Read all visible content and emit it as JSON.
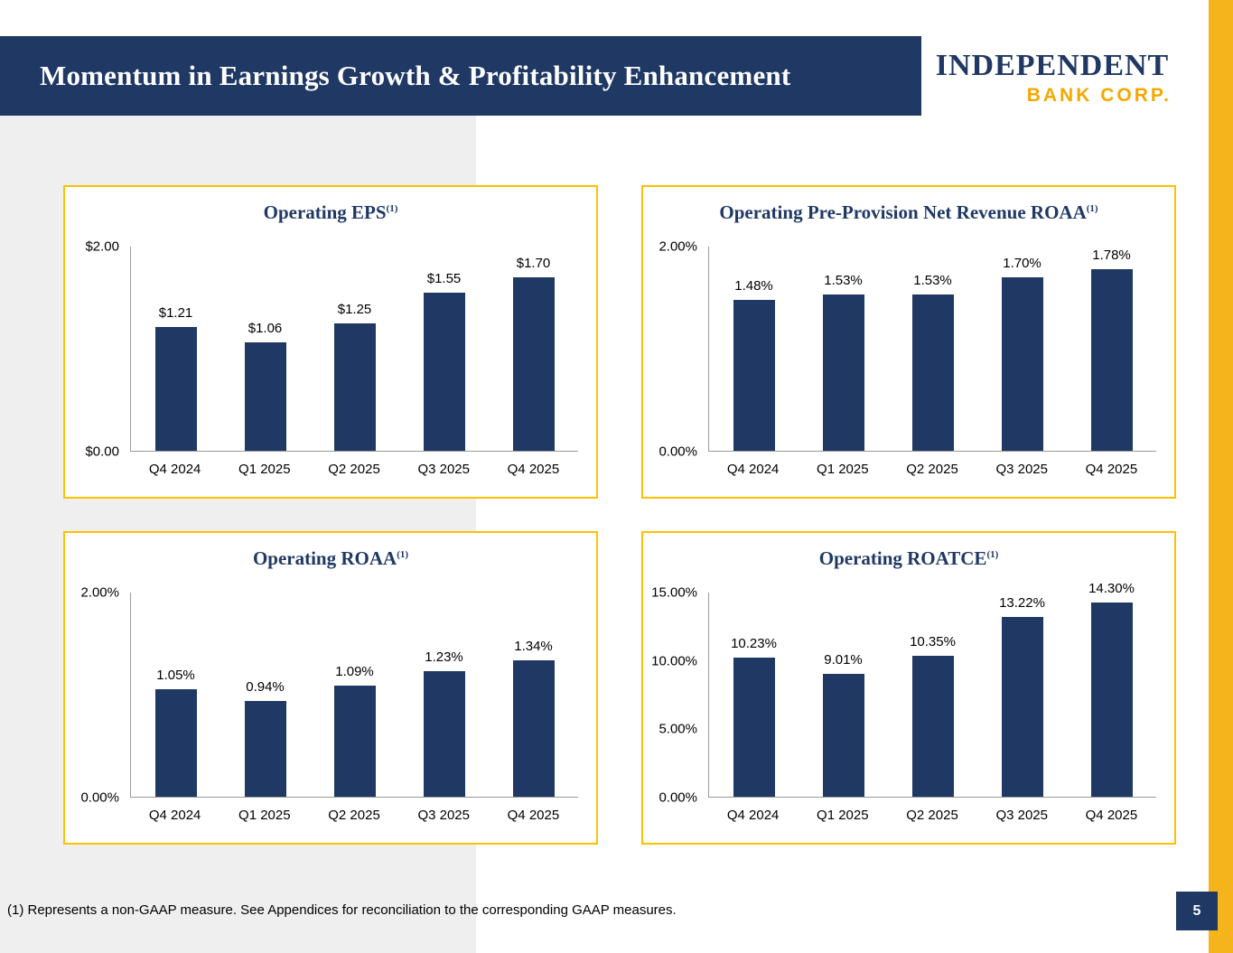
{
  "slide": {
    "title": "Momentum in Earnings Growth & Profitability Enhancement",
    "logo": {
      "line1": "INDEPENDENT",
      "line2": "BANK CORP."
    },
    "footnote": "(1) Represents a non-GAAP measure. See Appendices for reconciliation to the corresponding GAAP measures.",
    "page_number": "5"
  },
  "colors": {
    "navy": "#1f3864",
    "accent_gold": "#f5b31c",
    "chart_border_gold": "#ffc000",
    "logo_gold": "#f5a800",
    "gray_background": "#efefef"
  },
  "chart_data": [
    {
      "type": "bar",
      "title": "Operating EPS",
      "title_superscript": "(1)",
      "categories": [
        "Q4 2024",
        "Q1 2025",
        "Q2 2025",
        "Q3 2025",
        "Q4 2025"
      ],
      "values": [
        1.21,
        1.06,
        1.25,
        1.55,
        1.7
      ],
      "labels": [
        "$1.21",
        "$1.06",
        "$1.25",
        "$1.55",
        "$1.70"
      ],
      "ylim": [
        0,
        2.0
      ],
      "yticks": [
        {
          "value": 2.0,
          "label": "$2.00"
        },
        {
          "value": 0.0,
          "label": "$0.00"
        }
      ],
      "grid": false,
      "legend": "none",
      "bar_color": "#1f3864"
    },
    {
      "type": "bar",
      "title": "Operating Pre-Provision Net Revenue ROAA",
      "title_superscript": "(1)",
      "categories": [
        "Q4 2024",
        "Q1 2025",
        "Q2 2025",
        "Q3 2025",
        "Q4 2025"
      ],
      "values": [
        1.48,
        1.53,
        1.53,
        1.7,
        1.78
      ],
      "labels": [
        "1.48%",
        "1.53%",
        "1.53%",
        "1.70%",
        "1.78%"
      ],
      "ylim": [
        0,
        2.0
      ],
      "yticks": [
        {
          "value": 2.0,
          "label": "2.00%"
        },
        {
          "value": 0.0,
          "label": "0.00%"
        }
      ],
      "grid": false,
      "legend": "none",
      "bar_color": "#1f3864"
    },
    {
      "type": "bar",
      "title": "Operating ROAA",
      "title_superscript": "(1)",
      "categories": [
        "Q4 2024",
        "Q1 2025",
        "Q2 2025",
        "Q3 2025",
        "Q4 2025"
      ],
      "values": [
        1.05,
        0.94,
        1.09,
        1.23,
        1.34
      ],
      "labels": [
        "1.05%",
        "0.94%",
        "1.09%",
        "1.23%",
        "1.34%"
      ],
      "ylim": [
        0,
        2.0
      ],
      "yticks": [
        {
          "value": 2.0,
          "label": "2.00%"
        },
        {
          "value": 0.0,
          "label": "0.00%"
        }
      ],
      "grid": false,
      "legend": "none",
      "bar_color": "#1f3864"
    },
    {
      "type": "bar",
      "title": "Operating ROATCE",
      "title_superscript": "(1)",
      "categories": [
        "Q4 2024",
        "Q1 2025",
        "Q2 2025",
        "Q3 2025",
        "Q4 2025"
      ],
      "values": [
        10.23,
        9.01,
        10.35,
        13.22,
        14.3
      ],
      "labels": [
        "10.23%",
        "9.01%",
        "10.35%",
        "13.22%",
        "14.30%"
      ],
      "ylim": [
        0,
        15.0
      ],
      "yticks": [
        {
          "value": 15.0,
          "label": "15.00%"
        },
        {
          "value": 10.0,
          "label": "10.00%"
        },
        {
          "value": 5.0,
          "label": "5.00%"
        },
        {
          "value": 0.0,
          "label": "0.00%"
        }
      ],
      "grid": false,
      "legend": "none",
      "bar_color": "#1f3864"
    }
  ]
}
